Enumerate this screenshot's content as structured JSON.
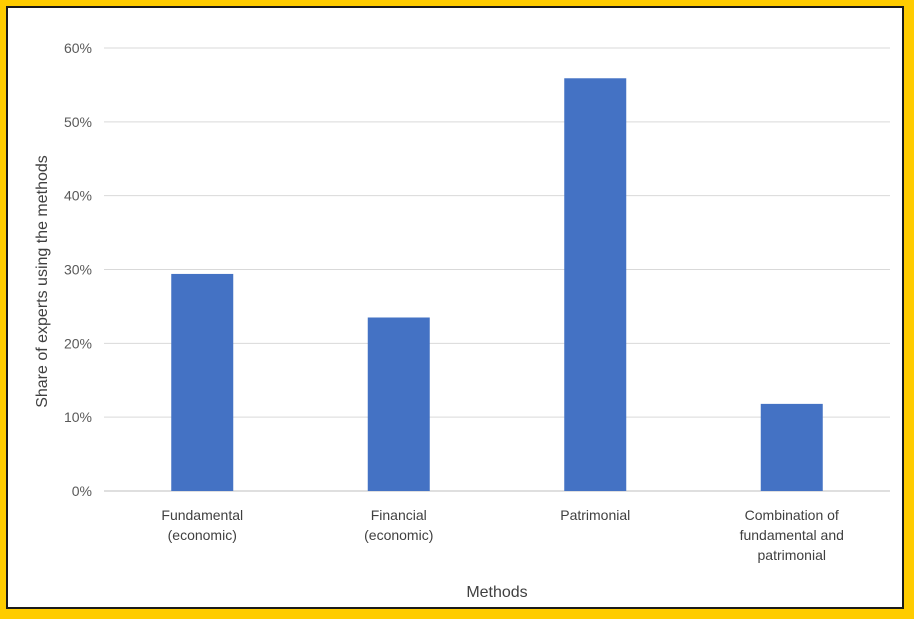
{
  "chart_data": {
    "type": "bar",
    "categories": [
      [
        "Fundamental",
        "(economic)"
      ],
      [
        "Financial",
        "(economic)"
      ],
      [
        "Patrimonial"
      ],
      [
        "Combination of",
        "fundamental and",
        "patrimonial"
      ]
    ],
    "values": [
      29.4,
      23.5,
      55.9,
      11.8
    ],
    "y_ticks": [
      "0%",
      "10%",
      "20%",
      "30%",
      "40%",
      "50%",
      "60%"
    ],
    "xlabel": "Methods",
    "ylabel": "Share of experts using the methods",
    "ylim": [
      0,
      60
    ],
    "grid": true,
    "bar_color": "#4472c4",
    "grid_color": "#d9d9d9",
    "frame_color": "#ffcc00"
  }
}
